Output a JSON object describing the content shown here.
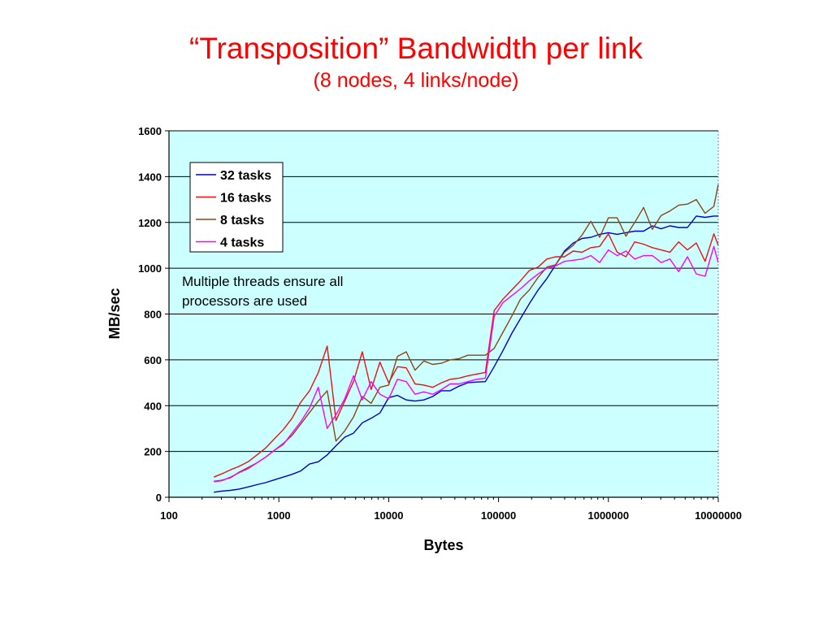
{
  "slide": {
    "title": "“Transposition” Bandwidth per link",
    "subtitle": "(8 nodes, 4 links/node)"
  },
  "chart_data": {
    "type": "line",
    "title": "",
    "xlabel": "Bytes",
    "ylabel": "MB/sec",
    "x_scale": "log",
    "xlim": [
      100,
      10000000
    ],
    "ylim": [
      0,
      1600
    ],
    "x_ticks": [
      "100",
      "1000",
      "10000",
      "100000",
      "1000000",
      "10000000"
    ],
    "y_ticks": [
      "0",
      "200",
      "400",
      "600",
      "800",
      "1000",
      "1200",
      "1400",
      "1600"
    ],
    "grid": "horizontal",
    "plot_background": "#ccffff",
    "legend_position": "top-left",
    "annotation": "Multiple threads ensure all processors are used",
    "series": [
      {
        "name": "32 tasks",
        "color": "#0000cc",
        "points": [
          [
            256,
            22
          ],
          [
            302,
            27
          ],
          [
            363,
            30
          ],
          [
            436,
            36
          ],
          [
            525,
            45
          ],
          [
            631,
            55
          ],
          [
            758,
            64
          ],
          [
            911,
            76
          ],
          [
            1096,
            88
          ],
          [
            1318,
            100
          ],
          [
            1584,
            115
          ],
          [
            1905,
            145
          ],
          [
            2290,
            155
          ],
          [
            2754,
            185
          ],
          [
            3311,
            225
          ],
          [
            3981,
            262
          ],
          [
            4786,
            280
          ],
          [
            5754,
            325
          ],
          [
            6918,
            345
          ],
          [
            8318,
            368
          ],
          [
            10000,
            435
          ],
          [
            12023,
            445
          ],
          [
            14454,
            425
          ],
          [
            17378,
            420
          ],
          [
            20893,
            425
          ],
          [
            25119,
            440
          ],
          [
            30200,
            465
          ],
          [
            36308,
            465
          ],
          [
            43652,
            485
          ],
          [
            52481,
            500
          ],
          [
            63096,
            503
          ],
          [
            75858,
            505
          ],
          [
            91201,
            570
          ],
          [
            109648,
            640
          ],
          [
            131826,
            715
          ],
          [
            158489,
            780
          ],
          [
            190546,
            845
          ],
          [
            229087,
            905
          ],
          [
            275423,
            955
          ],
          [
            331131,
            1015
          ],
          [
            398107,
            1075
          ],
          [
            478630,
            1110
          ],
          [
            575440,
            1130
          ],
          [
            691831,
            1135
          ],
          [
            831764,
            1148
          ],
          [
            1000000,
            1155
          ],
          [
            1202264,
            1148
          ],
          [
            1445440,
            1155
          ],
          [
            1737801,
            1162
          ],
          [
            2089296,
            1162
          ],
          [
            2511886,
            1185
          ],
          [
            3019952,
            1172
          ],
          [
            3630781,
            1185
          ],
          [
            4365158,
            1178
          ],
          [
            5248075,
            1178
          ],
          [
            6309573,
            1228
          ],
          [
            7585776,
            1222
          ],
          [
            9120108,
            1228
          ],
          [
            10000000,
            1228
          ]
        ]
      },
      {
        "name": "16 tasks",
        "color": "#ee1111",
        "points": [
          [
            256,
            88
          ],
          [
            302,
            102
          ],
          [
            363,
            120
          ],
          [
            436,
            135
          ],
          [
            525,
            155
          ],
          [
            631,
            185
          ],
          [
            758,
            215
          ],
          [
            911,
            255
          ],
          [
            1096,
            295
          ],
          [
            1318,
            345
          ],
          [
            1584,
            415
          ],
          [
            1905,
            465
          ],
          [
            2290,
            545
          ],
          [
            2754,
            660
          ],
          [
            3311,
            335
          ],
          [
            3981,
            420
          ],
          [
            4786,
            505
          ],
          [
            5754,
            635
          ],
          [
            6918,
            470
          ],
          [
            8318,
            590
          ],
          [
            10000,
            500
          ],
          [
            12023,
            570
          ],
          [
            14454,
            565
          ],
          [
            17378,
            495
          ],
          [
            20893,
            490
          ],
          [
            25119,
            480
          ],
          [
            30200,
            500
          ],
          [
            36308,
            515
          ],
          [
            43652,
            520
          ],
          [
            52481,
            530
          ],
          [
            63096,
            538
          ],
          [
            75858,
            545
          ],
          [
            91201,
            815
          ],
          [
            109648,
            865
          ],
          [
            131826,
            905
          ],
          [
            158489,
            945
          ],
          [
            190546,
            990
          ],
          [
            229087,
            1005
          ],
          [
            275423,
            1040
          ],
          [
            331131,
            1050
          ],
          [
            398107,
            1050
          ],
          [
            478630,
            1075
          ],
          [
            575440,
            1070
          ],
          [
            691831,
            1090
          ],
          [
            831764,
            1095
          ],
          [
            1000000,
            1150
          ],
          [
            1202264,
            1070
          ],
          [
            1445440,
            1050
          ],
          [
            1737801,
            1115
          ],
          [
            2089296,
            1105
          ],
          [
            2511886,
            1090
          ],
          [
            3019952,
            1080
          ],
          [
            3630781,
            1070
          ],
          [
            4365158,
            1115
          ],
          [
            5248075,
            1080
          ],
          [
            6309573,
            1110
          ],
          [
            7585776,
            1030
          ],
          [
            9120108,
            1150
          ],
          [
            10000000,
            1100
          ]
        ]
      },
      {
        "name": "8 tasks",
        "color": "#8b4513",
        "points": [
          [
            256,
            70
          ],
          [
            302,
            74
          ],
          [
            363,
            85
          ],
          [
            436,
            110
          ],
          [
            525,
            130
          ],
          [
            631,
            150
          ],
          [
            758,
            175
          ],
          [
            911,
            205
          ],
          [
            1096,
            235
          ],
          [
            1318,
            270
          ],
          [
            1584,
            320
          ],
          [
            1905,
            370
          ],
          [
            2290,
            420
          ],
          [
            2754,
            465
          ],
          [
            3311,
            245
          ],
          [
            3981,
            290
          ],
          [
            4786,
            350
          ],
          [
            5754,
            440
          ],
          [
            6918,
            410
          ],
          [
            8318,
            480
          ],
          [
            10000,
            490
          ],
          [
            12023,
            615
          ],
          [
            14454,
            635
          ],
          [
            17378,
            555
          ],
          [
            20893,
            595
          ],
          [
            25119,
            580
          ],
          [
            30200,
            585
          ],
          [
            36308,
            600
          ],
          [
            43652,
            605
          ],
          [
            52481,
            620
          ],
          [
            63096,
            620
          ],
          [
            75858,
            620
          ],
          [
            91201,
            650
          ],
          [
            109648,
            720
          ],
          [
            131826,
            790
          ],
          [
            158489,
            865
          ],
          [
            190546,
            905
          ],
          [
            229087,
            960
          ],
          [
            275423,
            1005
          ],
          [
            331131,
            1015
          ],
          [
            398107,
            1070
          ],
          [
            478630,
            1100
          ],
          [
            575440,
            1145
          ],
          [
            691831,
            1205
          ],
          [
            831764,
            1135
          ],
          [
            1000000,
            1220
          ],
          [
            1202264,
            1220
          ],
          [
            1445440,
            1140
          ],
          [
            1737801,
            1200
          ],
          [
            2089296,
            1265
          ],
          [
            2511886,
            1170
          ],
          [
            3019952,
            1230
          ],
          [
            3630781,
            1250
          ],
          [
            4365158,
            1275
          ],
          [
            5248075,
            1280
          ],
          [
            6309573,
            1300
          ],
          [
            7585776,
            1240
          ],
          [
            9120108,
            1270
          ],
          [
            10000000,
            1365
          ]
        ]
      },
      {
        "name": "4 tasks",
        "color": "#ff00ff",
        "points": [
          [
            256,
            68
          ],
          [
            302,
            72
          ],
          [
            363,
            88
          ],
          [
            436,
            108
          ],
          [
            525,
            125
          ],
          [
            631,
            150
          ],
          [
            758,
            175
          ],
          [
            911,
            205
          ],
          [
            1096,
            230
          ],
          [
            1318,
            280
          ],
          [
            1584,
            330
          ],
          [
            1905,
            390
          ],
          [
            2290,
            480
          ],
          [
            2754,
            300
          ],
          [
            3311,
            360
          ],
          [
            3981,
            430
          ],
          [
            4786,
            530
          ],
          [
            5754,
            425
          ],
          [
            6918,
            505
          ],
          [
            8318,
            450
          ],
          [
            10000,
            430
          ],
          [
            12023,
            515
          ],
          [
            14454,
            505
          ],
          [
            17378,
            450
          ],
          [
            20893,
            460
          ],
          [
            25119,
            450
          ],
          [
            30200,
            470
          ],
          [
            36308,
            495
          ],
          [
            43652,
            495
          ],
          [
            52481,
            505
          ],
          [
            63096,
            515
          ],
          [
            75858,
            520
          ],
          [
            91201,
            790
          ],
          [
            109648,
            850
          ],
          [
            131826,
            880
          ],
          [
            158489,
            910
          ],
          [
            190546,
            945
          ],
          [
            229087,
            975
          ],
          [
            275423,
            1000
          ],
          [
            331131,
            1010
          ],
          [
            398107,
            1030
          ],
          [
            478630,
            1035
          ],
          [
            575440,
            1040
          ],
          [
            691831,
            1055
          ],
          [
            831764,
            1025
          ],
          [
            1000000,
            1080
          ],
          [
            1202264,
            1055
          ],
          [
            1445440,
            1075
          ],
          [
            1737801,
            1040
          ],
          [
            2089296,
            1055
          ],
          [
            2511886,
            1055
          ],
          [
            3019952,
            1025
          ],
          [
            3630781,
            1040
          ],
          [
            4365158,
            985
          ],
          [
            5248075,
            1050
          ],
          [
            6309573,
            975
          ],
          [
            7585776,
            965
          ],
          [
            9120108,
            1095
          ],
          [
            10000000,
            1025
          ]
        ]
      }
    ]
  }
}
